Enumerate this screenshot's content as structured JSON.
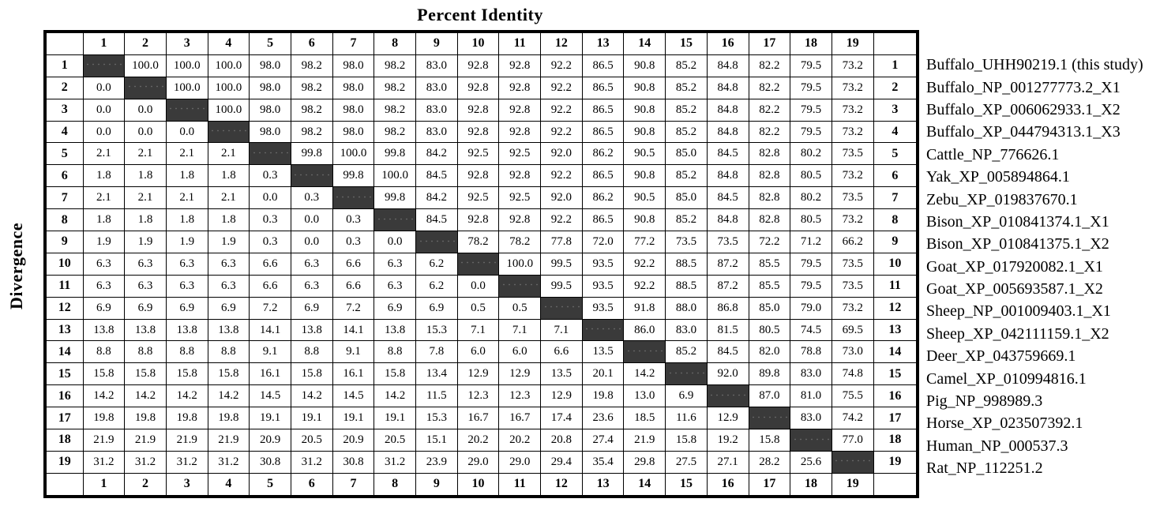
{
  "title": "Percent Identity",
  "side_label": "Divergence",
  "colors": {
    "diagonal_fill": "#3a3a3a",
    "grid_line": "#000000",
    "background": "#ffffff",
    "text": "#000000"
  },
  "chart_data": {
    "type": "table",
    "title": "Percent Identity",
    "row_axis_label": "Divergence",
    "col_headers": [
      "1",
      "2",
      "3",
      "4",
      "5",
      "6",
      "7",
      "8",
      "9",
      "10",
      "11",
      "12",
      "13",
      "14",
      "15",
      "16",
      "17",
      "18",
      "19"
    ],
    "row_headers": [
      "1",
      "2",
      "3",
      "4",
      "5",
      "6",
      "7",
      "8",
      "9",
      "10",
      "11",
      "12",
      "13",
      "14",
      "15",
      "16",
      "17",
      "18",
      "19"
    ],
    "sequence_labels": [
      "Buffalo_UHH90219.1 (this study)",
      "Buffalo_NP_001277773.2_X1",
      "Buffalo_XP_006062933.1_X2",
      "Buffalo_XP_044794313.1_X3",
      "Cattle_NP_776626.1",
      "Yak_XP_005894864.1",
      "Zebu_XP_019837670.1",
      "Bison_XP_010841374.1_X1",
      "Bison_XP_010841375.1_X2",
      "Goat_XP_017920082.1_X1",
      "Goat_XP_005693587.1_X2",
      "Sheep_NP_001009403.1_X1",
      "Sheep_XP_042111159.1_X2",
      "Deer_XP_043759669.1",
      "Camel_XP_010994816.1",
      "Pig_NP_998989.3",
      "Horse_XP_023507392.1",
      "Human_NP_000537.3",
      "Rat_NP_112251.2"
    ],
    "matrix": [
      [
        null,
        "100.0",
        "100.0",
        "100.0",
        "98.0",
        "98.2",
        "98.0",
        "98.2",
        "83.0",
        "92.8",
        "92.8",
        "92.2",
        "86.5",
        "90.8",
        "85.2",
        "84.8",
        "82.2",
        "79.5",
        "73.2"
      ],
      [
        "0.0",
        null,
        "100.0",
        "100.0",
        "98.0",
        "98.2",
        "98.0",
        "98.2",
        "83.0",
        "92.8",
        "92.8",
        "92.2",
        "86.5",
        "90.8",
        "85.2",
        "84.8",
        "82.2",
        "79.5",
        "73.2"
      ],
      [
        "0.0",
        "0.0",
        null,
        "100.0",
        "98.0",
        "98.2",
        "98.0",
        "98.2",
        "83.0",
        "92.8",
        "92.8",
        "92.2",
        "86.5",
        "90.8",
        "85.2",
        "84.8",
        "82.2",
        "79.5",
        "73.2"
      ],
      [
        "0.0",
        "0.0",
        "0.0",
        null,
        "98.0",
        "98.2",
        "98.0",
        "98.2",
        "83.0",
        "92.8",
        "92.8",
        "92.2",
        "86.5",
        "90.8",
        "85.2",
        "84.8",
        "82.2",
        "79.5",
        "73.2"
      ],
      [
        "2.1",
        "2.1",
        "2.1",
        "2.1",
        null,
        "99.8",
        "100.0",
        "99.8",
        "84.2",
        "92.5",
        "92.5",
        "92.0",
        "86.2",
        "90.5",
        "85.0",
        "84.5",
        "82.8",
        "80.2",
        "73.5"
      ],
      [
        "1.8",
        "1.8",
        "1.8",
        "1.8",
        "0.3",
        null,
        "99.8",
        "100.0",
        "84.5",
        "92.8",
        "92.8",
        "92.2",
        "86.5",
        "90.8",
        "85.2",
        "84.8",
        "82.8",
        "80.5",
        "73.2"
      ],
      [
        "2.1",
        "2.1",
        "2.1",
        "2.1",
        "0.0",
        "0.3",
        null,
        "99.8",
        "84.2",
        "92.5",
        "92.5",
        "92.0",
        "86.2",
        "90.5",
        "85.0",
        "84.5",
        "82.8",
        "80.2",
        "73.5"
      ],
      [
        "1.8",
        "1.8",
        "1.8",
        "1.8",
        "0.3",
        "0.0",
        "0.3",
        null,
        "84.5",
        "92.8",
        "92.8",
        "92.2",
        "86.5",
        "90.8",
        "85.2",
        "84.8",
        "82.8",
        "80.5",
        "73.2"
      ],
      [
        "1.9",
        "1.9",
        "1.9",
        "1.9",
        "0.3",
        "0.0",
        "0.3",
        "0.0",
        null,
        "78.2",
        "78.2",
        "77.8",
        "72.0",
        "77.2",
        "73.5",
        "73.5",
        "72.2",
        "71.2",
        "66.2"
      ],
      [
        "6.3",
        "6.3",
        "6.3",
        "6.3",
        "6.6",
        "6.3",
        "6.6",
        "6.3",
        "6.2",
        null,
        "100.0",
        "99.5",
        "93.5",
        "92.2",
        "88.5",
        "87.2",
        "85.5",
        "79.5",
        "73.5"
      ],
      [
        "6.3",
        "6.3",
        "6.3",
        "6.3",
        "6.6",
        "6.3",
        "6.6",
        "6.3",
        "6.2",
        "0.0",
        null,
        "99.5",
        "93.5",
        "92.2",
        "88.5",
        "87.2",
        "85.5",
        "79.5",
        "73.5"
      ],
      [
        "6.9",
        "6.9",
        "6.9",
        "6.9",
        "7.2",
        "6.9",
        "7.2",
        "6.9",
        "6.9",
        "0.5",
        "0.5",
        null,
        "93.5",
        "91.8",
        "88.0",
        "86.8",
        "85.0",
        "79.0",
        "73.2"
      ],
      [
        "13.8",
        "13.8",
        "13.8",
        "13.8",
        "14.1",
        "13.8",
        "14.1",
        "13.8",
        "15.3",
        "7.1",
        "7.1",
        "7.1",
        null,
        "86.0",
        "83.0",
        "81.5",
        "80.5",
        "74.5",
        "69.5"
      ],
      [
        "8.8",
        "8.8",
        "8.8",
        "8.8",
        "9.1",
        "8.8",
        "9.1",
        "8.8",
        "7.8",
        "6.0",
        "6.0",
        "6.6",
        "13.5",
        null,
        "85.2",
        "84.5",
        "82.0",
        "78.8",
        "73.0"
      ],
      [
        "15.8",
        "15.8",
        "15.8",
        "15.8",
        "16.1",
        "15.8",
        "16.1",
        "15.8",
        "13.4",
        "12.9",
        "12.9",
        "13.5",
        "20.1",
        "14.2",
        null,
        "92.0",
        "89.8",
        "83.0",
        "74.8"
      ],
      [
        "14.2",
        "14.2",
        "14.2",
        "14.2",
        "14.5",
        "14.2",
        "14.5",
        "14.2",
        "11.5",
        "12.3",
        "12.3",
        "12.9",
        "19.8",
        "13.0",
        "6.9",
        null,
        "87.0",
        "81.0",
        "75.5"
      ],
      [
        "19.8",
        "19.8",
        "19.8",
        "19.8",
        "19.1",
        "19.1",
        "19.1",
        "19.1",
        "15.3",
        "16.7",
        "16.7",
        "17.4",
        "23.6",
        "18.5",
        "11.6",
        "12.9",
        null,
        "83.0",
        "74.2"
      ],
      [
        "21.9",
        "21.9",
        "21.9",
        "21.9",
        "20.9",
        "20.5",
        "20.9",
        "20.5",
        "15.1",
        "20.2",
        "20.2",
        "20.8",
        "27.4",
        "21.9",
        "15.8",
        "19.2",
        "15.8",
        null,
        "77.0"
      ],
      [
        "31.2",
        "31.2",
        "31.2",
        "31.2",
        "30.8",
        "31.2",
        "30.8",
        "31.2",
        "23.9",
        "29.0",
        "29.0",
        "29.4",
        "35.4",
        "29.8",
        "27.5",
        "27.1",
        "28.2",
        "25.6",
        null
      ]
    ]
  }
}
